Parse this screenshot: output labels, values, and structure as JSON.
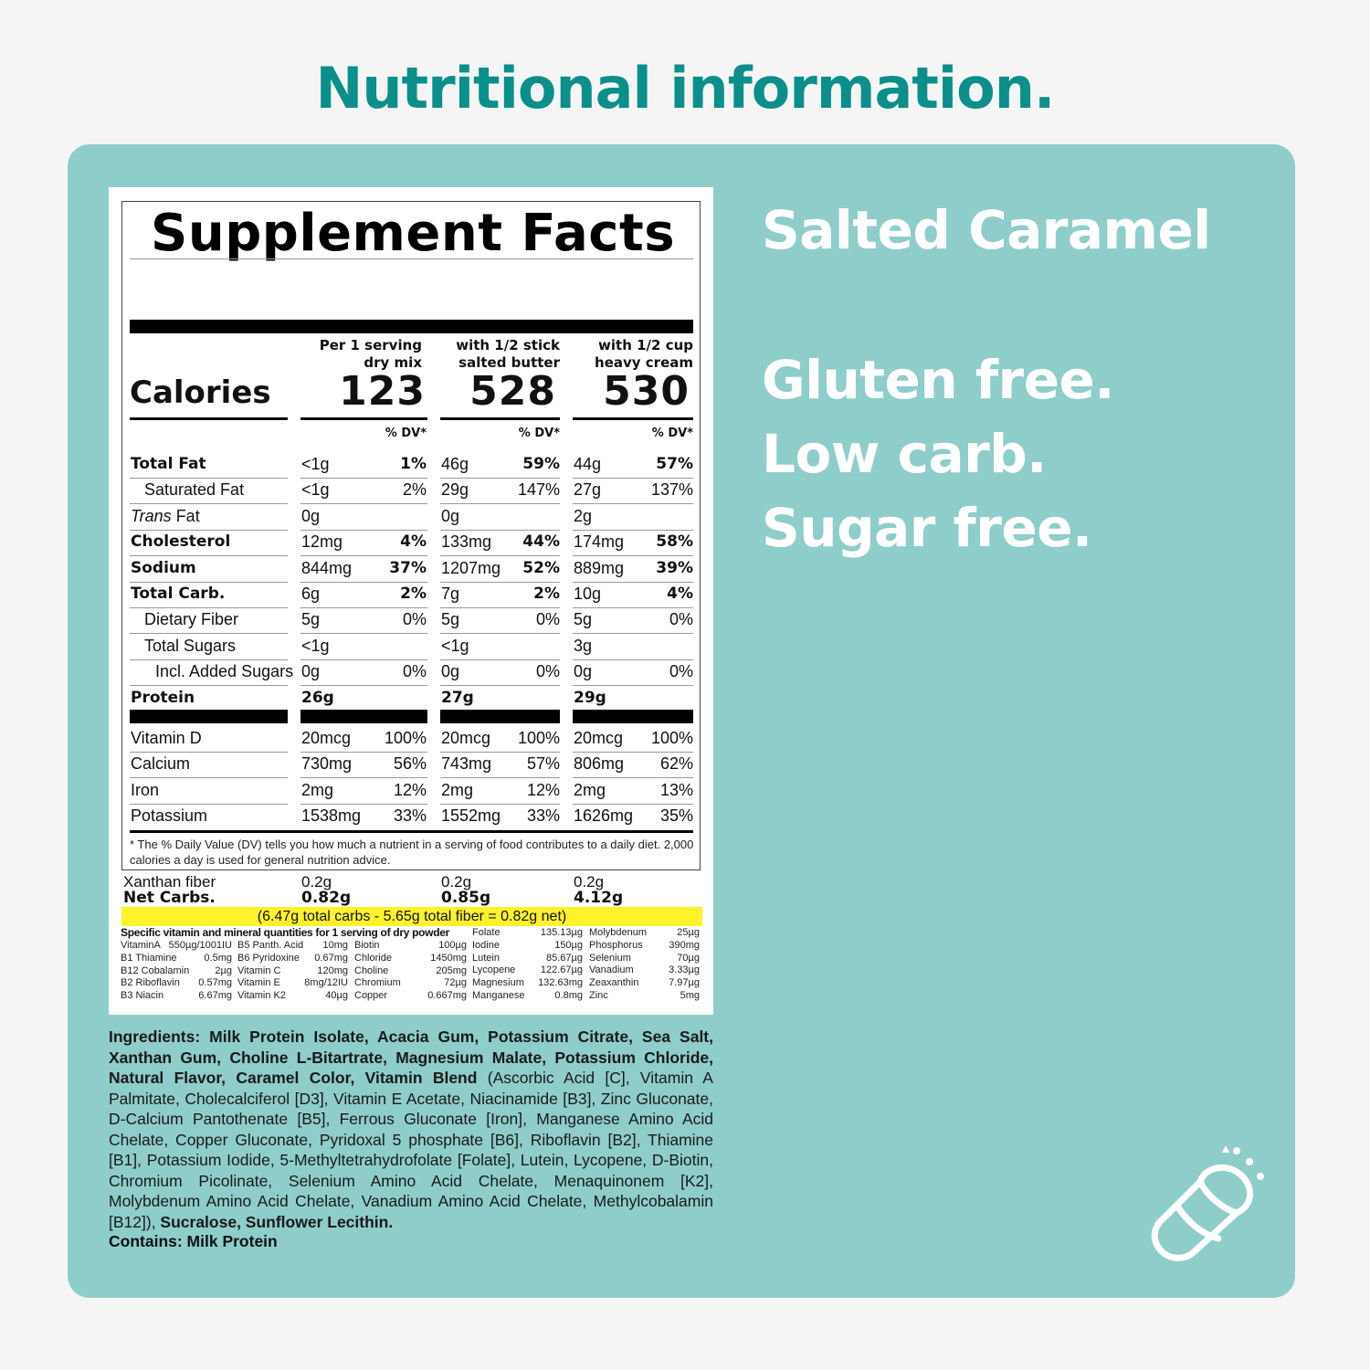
{
  "colors": {
    "heading": "#0b8f8a",
    "panel": "#8ecdca",
    "highlight": "#fff22a",
    "claim_text": "#ffffff"
  },
  "heading": "Nutritional information.",
  "facts": {
    "title": "Supplement Facts",
    "calories_label": "Calories",
    "columns": [
      {
        "head1": "Per 1 serving",
        "head2": "dry mix",
        "calories": "123",
        "dv": "% DV*"
      },
      {
        "head1": "with 1/2 stick",
        "head2": "salted butter",
        "calories": "528",
        "dv": "% DV*"
      },
      {
        "head1": "with 1/2 cup",
        "head2": "heavy cream",
        "calories": "530",
        "dv": "% DV*"
      }
    ],
    "rows": [
      {
        "label": "Total Fat",
        "vals": [
          "<1g",
          "46g",
          "44g"
        ],
        "dvs": [
          "1%",
          "59%",
          "57%"
        ]
      },
      {
        "label": "Saturated Fat",
        "vals": [
          "<1g",
          "29g",
          "27g"
        ],
        "dvs": [
          "2%",
          "147%",
          "137%"
        ]
      },
      {
        "label_italic": "Trans",
        "label": " Fat",
        "vals": [
          "0g",
          "0g",
          "2g"
        ],
        "dvs": [
          "",
          "",
          ""
        ]
      },
      {
        "label": "Cholesterol",
        "vals": [
          "12mg",
          "133mg",
          "174mg"
        ],
        "dvs": [
          "4%",
          "44%",
          "58%"
        ]
      },
      {
        "label": "Sodium",
        "vals": [
          "844mg",
          "1207mg",
          "889mg"
        ],
        "dvs": [
          "37%",
          "52%",
          "39%"
        ]
      },
      {
        "label": "Total Carb.",
        "vals": [
          "6g",
          "7g",
          "10g"
        ],
        "dvs": [
          "2%",
          "2%",
          "4%"
        ]
      },
      {
        "label": "Dietary Fiber",
        "vals": [
          "5g",
          "5g",
          "5g"
        ],
        "dvs": [
          "0%",
          "0%",
          "0%"
        ]
      },
      {
        "label": "Total Sugars",
        "vals": [
          "<1g",
          "<1g",
          "3g"
        ],
        "dvs": [
          "",
          "",
          ""
        ]
      },
      {
        "label": "Incl. Added Sugars",
        "vals": [
          "0g",
          "0g",
          "0g"
        ],
        "dvs": [
          "0%",
          "0%",
          "0%"
        ]
      },
      {
        "label": "Protein",
        "vals": [
          "26g",
          "27g",
          "29g"
        ],
        "dvs": [
          "",
          "",
          ""
        ]
      }
    ],
    "vitamins": [
      {
        "label": "Vitamin D",
        "vals": [
          "20mcg",
          "20mcg",
          "20mcg"
        ],
        "dvs": [
          "100%",
          "100%",
          "100%"
        ]
      },
      {
        "label": "Calcium",
        "vals": [
          "730mg",
          "743mg",
          "806mg"
        ],
        "dvs": [
          "56%",
          "57%",
          "62%"
        ]
      },
      {
        "label": "Iron",
        "vals": [
          "2mg",
          "2mg",
          "2mg"
        ],
        "dvs": [
          "12%",
          "12%",
          "13%"
        ]
      },
      {
        "label": "Potassium",
        "vals": [
          "1538mg",
          "1552mg",
          "1626mg"
        ],
        "dvs": [
          "33%",
          "33%",
          "35%"
        ]
      }
    ],
    "footnote": "* The % Daily Value (DV) tells you how much a nutrient in a serving of food contributes to a daily diet. 2,000 calories a day is used for general nutrition advice.",
    "xanthan": {
      "label": "Xanthan fiber",
      "vals": [
        "0.2g",
        "0.2g",
        "0.2g"
      ]
    },
    "net_carbs": {
      "label": "Net Carbs.",
      "vals": [
        "0.82g",
        "0.85g",
        "4.12g"
      ]
    },
    "highlight_note": "(6.47g total carbs - 5.65g total fiber = 0.82g net)",
    "mineral_title": "Specific vitamin and mineral quantities for 1 serving of dry powder",
    "minerals": [
      [
        [
          "VitaminA",
          "550µg/1001IU"
        ],
        [
          "B1 Thiamine",
          "0.5mg"
        ],
        [
          "B12 Cobalamin",
          "2µg"
        ],
        [
          "B2 Riboflavin",
          "0.57mg"
        ],
        [
          "B3 Niacin",
          "6.67mg"
        ]
      ],
      [
        [
          "B5 Panth. Acid",
          "10mg"
        ],
        [
          "B6 Pyridoxine",
          "0.67mg"
        ],
        [
          "Vitamin C",
          "120mg"
        ],
        [
          "Vitamin E",
          "8mg/12IU"
        ],
        [
          "Vitamin K2",
          "40µg"
        ]
      ],
      [
        [
          "Biotin",
          "100µg"
        ],
        [
          "Chloride",
          "1450mg"
        ],
        [
          "Choline",
          "205mg"
        ],
        [
          "Chromium",
          "72µg"
        ],
        [
          "Copper",
          "0.667mg"
        ]
      ],
      [
        [
          "Folate",
          "135.13µg"
        ],
        [
          "Iodine",
          "150µg"
        ],
        [
          "Lutein",
          "85.67µg"
        ],
        [
          "Lycopene",
          "122.67µg"
        ],
        [
          "Magnesium",
          "132.63mg"
        ],
        [
          "Manganese",
          "0.8mg"
        ]
      ],
      [
        [
          "Molybdenum",
          "25µg"
        ],
        [
          "Phosphorus",
          "390mg"
        ],
        [
          "Selenium",
          "70µg"
        ],
        [
          "Vanadium",
          "3.33µg"
        ],
        [
          "Zeaxanthin",
          "7.97µg"
        ],
        [
          "Zinc",
          "5mg"
        ]
      ]
    ]
  },
  "ingredients": {
    "label": "Ingredients:",
    "bold_part": " Milk Protein Isolate, Acacia Gum, Potassium Citrate, Sea Salt, Xanthan Gum, Choline L-Bitartrate, Magnesium Malate, Potassium Chloride, Natural Flavor, Caramel Color, Vitamin Blend",
    "regular_part": " (Ascorbic Acid [C], Vitamin A Palmitate, Cholecalciferol [D3], Vitamin E Acetate, Niacinamide [B3], Zinc Gluconate, D-Calcium Pantothenate [B5], Ferrous Gluconate [Iron], Manganese Amino Acid Chelate, Copper Gluconate, Pyridoxal 5 phosphate [B6], Riboflavin [B2], Thiamine [B1], Potassium Iodide, 5-Methyltetrahydrofolate [Folate], Lutein, Lycopene, D-Biotin, Chromium Picolinate, Selenium Amino Acid Chelate, Menaquinonem [K2], Molybdenum Amino Acid Chelate, Vanadium Amino Acid Chelate, Methylcobalamin [B12]),",
    "bold_end": " Sucralose, Sunflower Lecithin.",
    "contains": "Contains: Milk Protein"
  },
  "claims": {
    "flavor": "Salted Caramel",
    "line1": "Gluten free.",
    "line2": "Low carb.",
    "line3": "Sugar free."
  },
  "icon": "shake-cup-icon"
}
